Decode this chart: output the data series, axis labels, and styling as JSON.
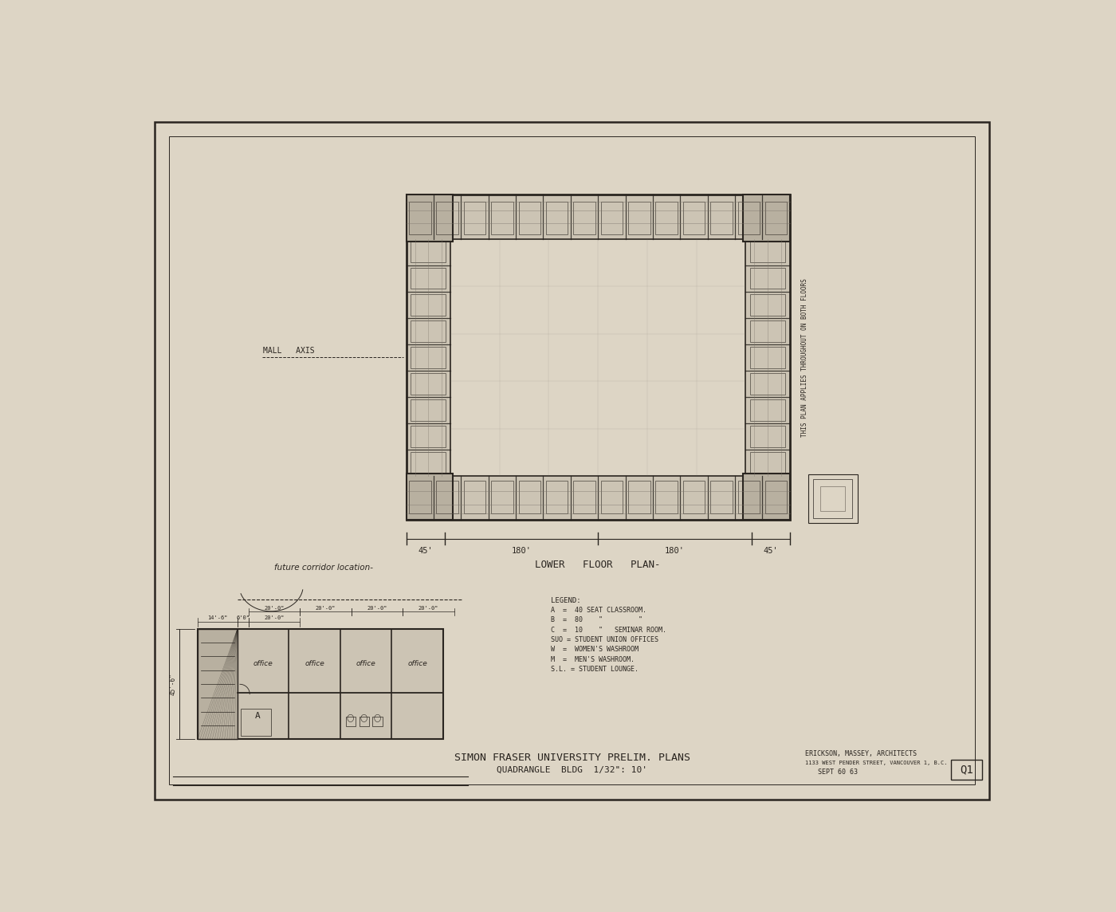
{
  "background_color": "#ddd5c5",
  "title_main": "SIMON FRASER UNIVERSITY PRELIM. PLANS",
  "title_sub": "QUADRANGLE  BLDG  1/32\": 10'",
  "firm": "ERICKSON, MASSEY, ARCHITECTS",
  "firm_address": "1133 WEST PENDER STREET, VANCOUVER 1, B.C.",
  "date": "SEPT 60 63",
  "sheet_num": "Q1",
  "label_lower_plan": "LOWER   FLOOR   PLAN-",
  "label_future_corridor": "future corridor location-",
  "label_mall_axis": "MALL   AXIS",
  "dim_label_45_left": "45'",
  "dim_label_180_mid1": "180'",
  "dim_label_180_mid2": "180'",
  "dim_label_45_right": "45'",
  "legend_items": [
    "A  =  40 SEAT CLASSROOM.",
    "B  =  80    \"         \"",
    "C  =  10    \"   SEMINAR ROOM.",
    "SUO = STUDENT UNION OFFICES",
    "W  =  WOMEN'S WASHROOM",
    "M  =  MEN'S WASHROOM.",
    "S.L. = STUDENT LOUNGE."
  ],
  "office_labels": [
    "office",
    "office",
    "office",
    "office"
  ],
  "line_color": "#2a2520",
  "grid_color": "#7a7268",
  "room_fill": "#ccc4b4",
  "court_fill": "#ddd5c5"
}
